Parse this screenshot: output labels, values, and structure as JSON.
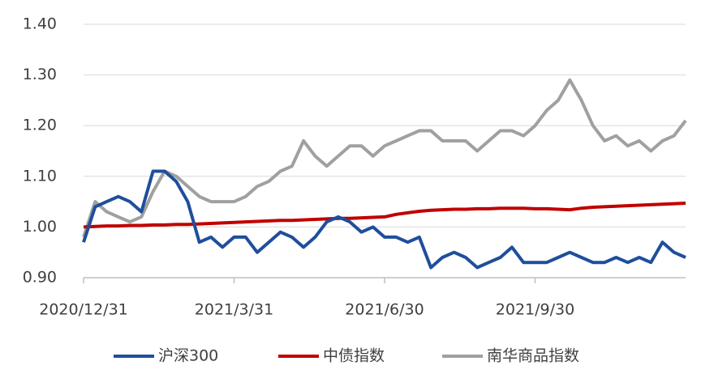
{
  "chart_data": {
    "type": "line",
    "categories": [
      "2020/12/31",
      null,
      null,
      null,
      null,
      null,
      null,
      null,
      null,
      null,
      null,
      null,
      null,
      "2021/3/31",
      null,
      null,
      null,
      null,
      null,
      null,
      null,
      null,
      null,
      null,
      null,
      null,
      "2021/6/30",
      null,
      null,
      null,
      null,
      null,
      null,
      null,
      null,
      null,
      null,
      null,
      null,
      "2021/9/30",
      null,
      null,
      null,
      null,
      null,
      null,
      null,
      null,
      null,
      null,
      null,
      null,
      null
    ],
    "series": [
      {
        "name": "沪深300",
        "color": "#1f4e9c",
        "values": [
          0.97,
          1.04,
          1.05,
          1.06,
          1.05,
          1.03,
          1.11,
          1.11,
          1.09,
          1.05,
          0.97,
          0.98,
          0.96,
          0.98,
          0.98,
          0.95,
          0.97,
          0.99,
          0.98,
          0.96,
          0.98,
          1.01,
          1.02,
          1.01,
          0.99,
          1.0,
          0.98,
          0.98,
          0.97,
          0.98,
          0.92,
          0.94,
          0.95,
          0.94,
          0.92,
          0.93,
          0.94,
          0.96,
          0.93,
          0.93,
          0.93,
          0.94,
          0.95,
          0.94,
          0.93,
          0.93,
          0.94,
          0.93,
          0.94,
          0.93,
          0.97,
          0.95,
          0.94
        ]
      },
      {
        "name": "中债指数",
        "color": "#c00000",
        "values": [
          1.0,
          1.001,
          1.002,
          1.002,
          1.003,
          1.003,
          1.004,
          1.004,
          1.005,
          1.005,
          1.006,
          1.007,
          1.008,
          1.009,
          1.01,
          1.011,
          1.012,
          1.013,
          1.013,
          1.014,
          1.015,
          1.016,
          1.017,
          1.017,
          1.018,
          1.019,
          1.02,
          1.025,
          1.028,
          1.031,
          1.033,
          1.034,
          1.035,
          1.035,
          1.036,
          1.036,
          1.037,
          1.037,
          1.037,
          1.036,
          1.036,
          1.035,
          1.034,
          1.037,
          1.039,
          1.04,
          1.041,
          1.042,
          1.043,
          1.044,
          1.045,
          1.046,
          1.047
        ]
      },
      {
        "name": "南华商品指数",
        "color": "#a0a0a0",
        "values": [
          0.98,
          1.05,
          1.03,
          1.02,
          1.01,
          1.02,
          1.07,
          1.11,
          1.1,
          1.08,
          1.06,
          1.05,
          1.05,
          1.05,
          1.06,
          1.08,
          1.09,
          1.11,
          1.12,
          1.17,
          1.14,
          1.12,
          1.14,
          1.16,
          1.16,
          1.14,
          1.16,
          1.17,
          1.18,
          1.19,
          1.19,
          1.17,
          1.17,
          1.17,
          1.15,
          1.17,
          1.19,
          1.19,
          1.18,
          1.2,
          1.23,
          1.25,
          1.29,
          1.25,
          1.2,
          1.17,
          1.18,
          1.16,
          1.17,
          1.15,
          1.17,
          1.18,
          1.21
        ]
      }
    ],
    "ylim": [
      0.9,
      1.4
    ],
    "yticks": [
      {
        "value": 0.9,
        "label": "0.90"
      },
      {
        "value": 1.0,
        "label": "1.00"
      },
      {
        "value": 1.1,
        "label": "1.10"
      },
      {
        "value": 1.2,
        "label": "1.20"
      },
      {
        "value": 1.3,
        "label": "1.30"
      },
      {
        "value": 1.4,
        "label": "1.40"
      }
    ],
    "grid": true,
    "legend": "bottom"
  }
}
